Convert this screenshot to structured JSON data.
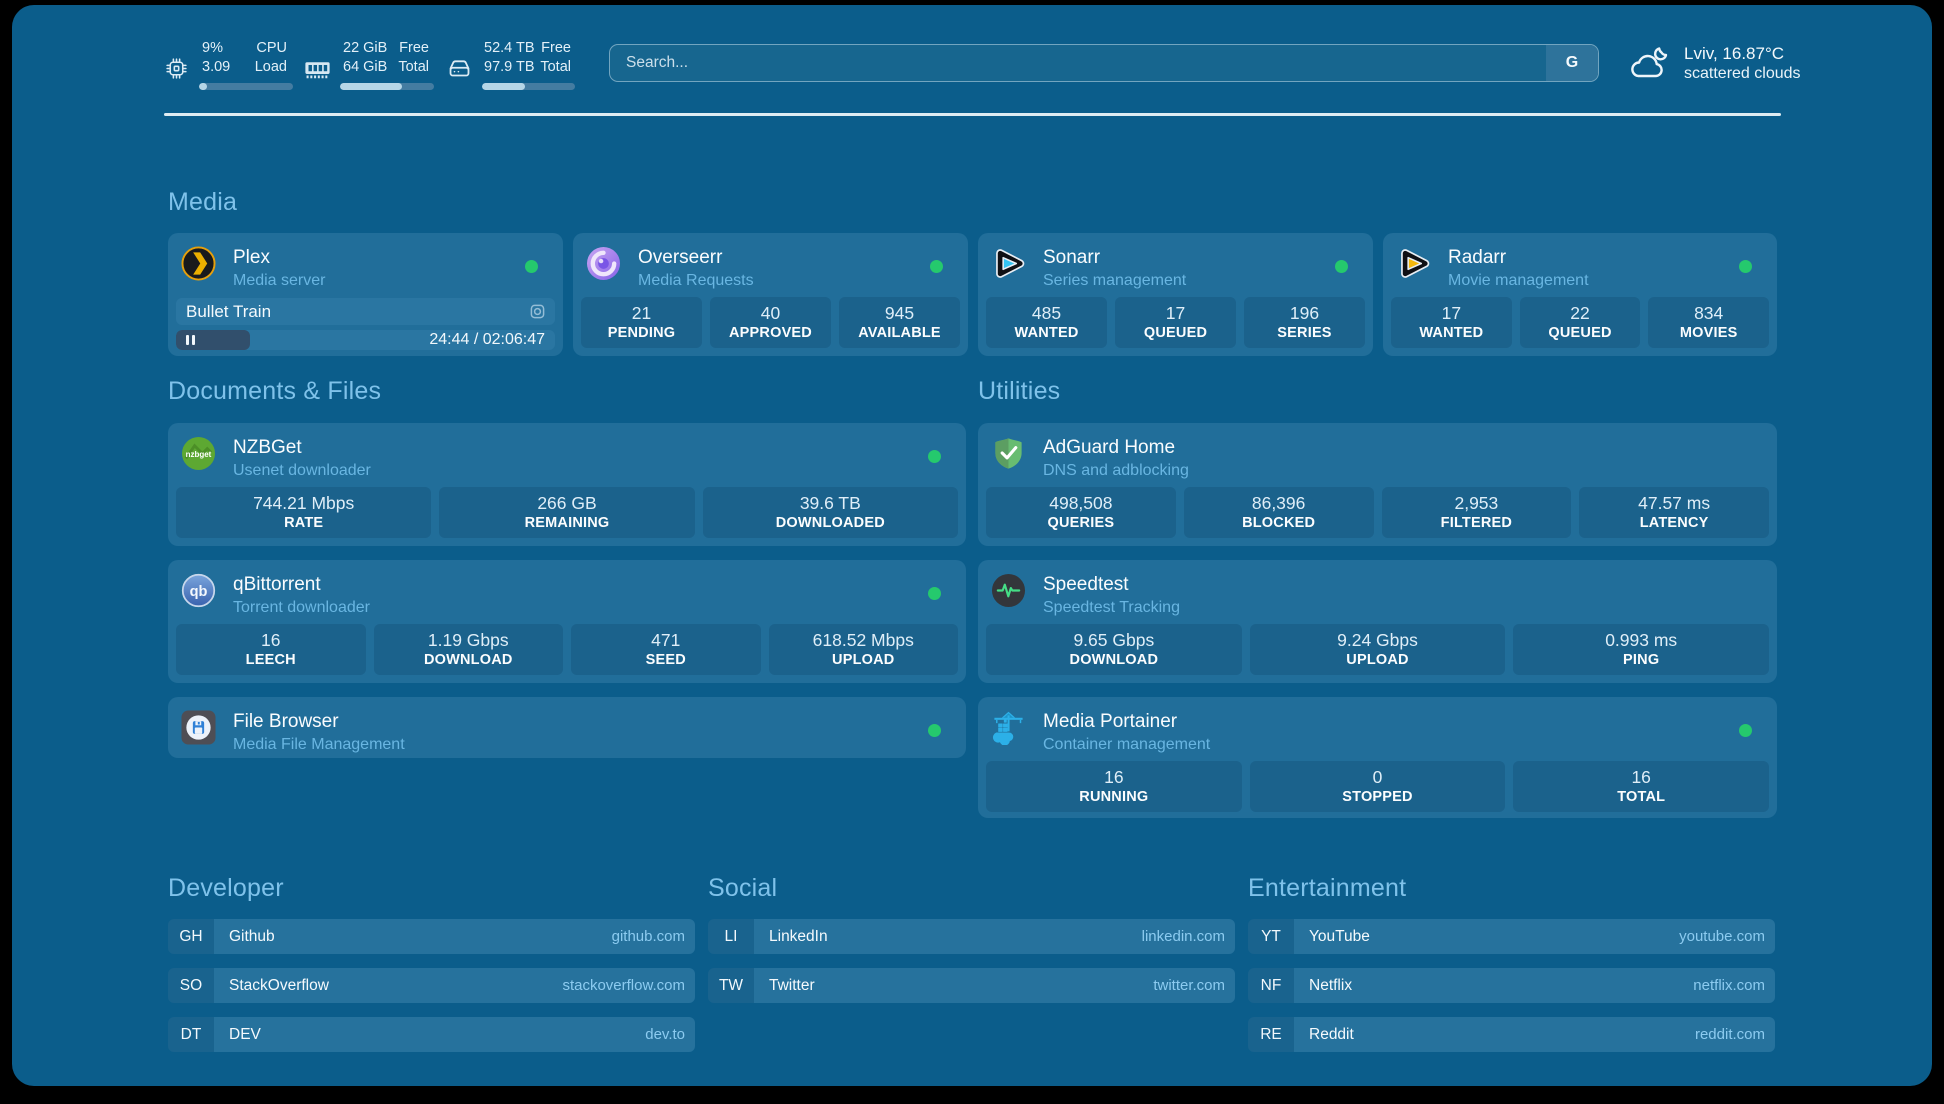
{
  "resources": [
    {
      "icon": "cpu-icon",
      "col1": [
        "9%",
        "3.09"
      ],
      "col2": [
        "CPU",
        "Load"
      ],
      "progress": 9
    },
    {
      "icon": "memory-icon",
      "col1": [
        "22 GiB",
        "64 GiB"
      ],
      "col2": [
        "Free",
        "Total"
      ],
      "progress": 65.6
    },
    {
      "icon": "disk-icon",
      "col1": [
        "52.4 TB",
        "97.9 TB"
      ],
      "col2": [
        "Free",
        "Total"
      ],
      "progress": 46.5
    }
  ],
  "search": {
    "placeholder": "Search...",
    "provider_label": "G"
  },
  "weather": {
    "location_temp": "Lviv, 16.87°C",
    "condition": "scattered clouds"
  },
  "groups": [
    {
      "title": "Media",
      "services": [
        {
          "name": "Plex",
          "desc": "Media server",
          "icon": "plex-icon",
          "online": true,
          "now_playing": {
            "title": "Bullet Train",
            "elapsed": "24:44",
            "total": "02:06:47",
            "time_text": "24:44 / 02:06:47",
            "progress": 19.5
          }
        },
        {
          "name": "Overseerr",
          "desc": "Media Requests",
          "icon": "overseerr-icon",
          "online": true,
          "stats": [
            {
              "value": "21",
              "label": "PENDING"
            },
            {
              "value": "40",
              "label": "APPROVED"
            },
            {
              "value": "945",
              "label": "AVAILABLE"
            }
          ]
        },
        {
          "name": "Sonarr",
          "desc": "Series management",
          "icon": "sonarr-icon",
          "online": true,
          "stats": [
            {
              "value": "485",
              "label": "WANTED"
            },
            {
              "value": "17",
              "label": "QUEUED"
            },
            {
              "value": "196",
              "label": "SERIES"
            }
          ]
        },
        {
          "name": "Radarr",
          "desc": "Movie management",
          "icon": "radarr-icon",
          "online": true,
          "stats": [
            {
              "value": "17",
              "label": "WANTED"
            },
            {
              "value": "22",
              "label": "QUEUED"
            },
            {
              "value": "834",
              "label": "MOVIES"
            }
          ]
        }
      ]
    },
    {
      "title": "Documents & Files",
      "services": [
        {
          "name": "NZBGet",
          "desc": "Usenet downloader",
          "icon": "nzbget-icon",
          "online": true,
          "stats": [
            {
              "value": "744.21 Mbps",
              "label": "RATE"
            },
            {
              "value": "266 GB",
              "label": "REMAINING"
            },
            {
              "value": "39.6 TB",
              "label": "DOWNLOADED"
            }
          ]
        },
        {
          "name": "qBittorrent",
          "desc": "Torrent downloader",
          "icon": "qbittorrent-icon",
          "online": true,
          "stats": [
            {
              "value": "16",
              "label": "LEECH"
            },
            {
              "value": "1.19 Gbps",
              "label": "DOWNLOAD"
            },
            {
              "value": "471",
              "label": "SEED"
            },
            {
              "value": "618.52 Mbps",
              "label": "UPLOAD"
            }
          ]
        },
        {
          "name": "File Browser",
          "desc": "Media File Management",
          "icon": "filebrowser-icon",
          "online": true,
          "stats": []
        }
      ]
    },
    {
      "title": "Utilities",
      "services": [
        {
          "name": "AdGuard Home",
          "desc": "DNS and adblocking",
          "icon": "adguard-icon",
          "online": false,
          "stats": [
            {
              "value": "498,508",
              "label": "QUERIES"
            },
            {
              "value": "86,396",
              "label": "BLOCKED"
            },
            {
              "value": "2,953",
              "label": "FILTERED"
            },
            {
              "value": "47.57 ms",
              "label": "LATENCY"
            }
          ]
        },
        {
          "name": "Speedtest",
          "desc": "Speedtest Tracking",
          "icon": "speedtest-icon",
          "online": false,
          "stats": [
            {
              "value": "9.65 Gbps",
              "label": "DOWNLOAD"
            },
            {
              "value": "9.24 Gbps",
              "label": "UPLOAD"
            },
            {
              "value": "0.993 ms",
              "label": "PING"
            }
          ]
        },
        {
          "name": "Media Portainer",
          "desc": "Container management",
          "icon": "portainer-icon",
          "online": true,
          "stats": [
            {
              "value": "16",
              "label": "RUNNING"
            },
            {
              "value": "0",
              "label": "STOPPED"
            },
            {
              "value": "16",
              "label": "TOTAL"
            }
          ]
        }
      ]
    }
  ],
  "bookmarks": [
    {
      "title": "Developer",
      "links": [
        {
          "abbr": "GH",
          "name": "Github",
          "url": "github.com"
        },
        {
          "abbr": "SO",
          "name": "StackOverflow",
          "url": "stackoverflow.com"
        },
        {
          "abbr": "DT",
          "name": "DEV",
          "url": "dev.to"
        }
      ]
    },
    {
      "title": "Social",
      "links": [
        {
          "abbr": "LI",
          "name": "LinkedIn",
          "url": "linkedin.com"
        },
        {
          "abbr": "TW",
          "name": "Twitter",
          "url": "twitter.com"
        }
      ]
    },
    {
      "title": "Entertainment",
      "links": [
        {
          "abbr": "YT",
          "name": "YouTube",
          "url": "youtube.com"
        },
        {
          "abbr": "NF",
          "name": "Netflix",
          "url": "netflix.com"
        },
        {
          "abbr": "RE",
          "name": "Reddit",
          "url": "reddit.com"
        }
      ]
    }
  ],
  "colors": {
    "background": "#0B5D8B",
    "card": "#216E9A",
    "accent_text": "#7FC2EA",
    "online_dot": "#25C96D"
  }
}
